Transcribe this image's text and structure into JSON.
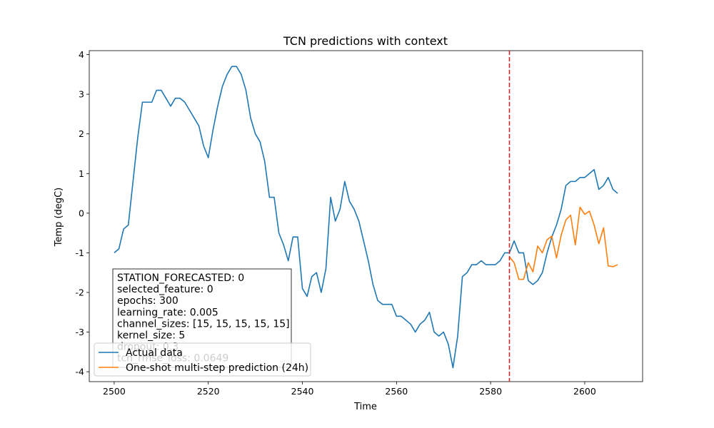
{
  "chart_data": {
    "type": "line",
    "title": "TCN predictions with context",
    "xlabel": "Time",
    "ylabel": "Temp (degC)",
    "xlim": [
      2494.7,
      2612.3
    ],
    "ylim": [
      -4.25,
      4.1
    ],
    "xticks": [
      2500,
      2520,
      2540,
      2560,
      2580,
      2600
    ],
    "yticks": [
      -4,
      -3,
      -2,
      -1,
      0,
      1,
      2,
      3,
      4
    ],
    "grid": false,
    "legend_position": "lower-left",
    "forecast_start_line": {
      "x": 2584,
      "color": "#d62728",
      "style": "dashed"
    },
    "series": [
      {
        "name": "Actual data",
        "color": "#1f77b4",
        "x_start": 2500,
        "values": [
          -1.0,
          -0.9,
          -0.4,
          -0.3,
          0.8,
          1.9,
          2.8,
          2.8,
          2.8,
          3.1,
          3.1,
          2.9,
          2.7,
          2.9,
          2.9,
          2.8,
          2.6,
          2.4,
          2.2,
          1.7,
          1.4,
          2.1,
          2.7,
          3.2,
          3.5,
          3.7,
          3.7,
          3.5,
          3.1,
          2.4,
          2.0,
          1.8,
          1.3,
          0.4,
          0.4,
          -0.5,
          -0.8,
          -1.2,
          -0.6,
          -0.6,
          -1.9,
          -2.1,
          -1.6,
          -1.5,
          -2.0,
          -1.4,
          0.4,
          -0.2,
          0.1,
          0.8,
          0.3,
          0.1,
          -0.2,
          -0.7,
          -1.2,
          -1.8,
          -2.2,
          -2.3,
          -2.3,
          -2.3,
          -2.6,
          -2.6,
          -2.7,
          -2.8,
          -3.0,
          -2.8,
          -2.7,
          -2.5,
          -3.0,
          -3.1,
          -3.0,
          -3.3,
          -3.9,
          -3.1,
          -1.6,
          -1.5,
          -1.3,
          -1.3,
          -1.2,
          -1.3,
          -1.3,
          -1.3,
          -1.2,
          -1.0,
          -1.0,
          -0.7,
          -1.0,
          -1.0,
          -1.7,
          -1.8,
          -1.7,
          -1.5,
          -1.0,
          -0.6,
          -0.3,
          0.1,
          0.7,
          0.8,
          0.8,
          0.9,
          0.9,
          1.0,
          1.1,
          0.6,
          0.7,
          0.9,
          0.6,
          0.5
        ]
      },
      {
        "name": "One-shot multi-step prediction (24h)",
        "color": "#ff7f0e",
        "x_start": 2584,
        "values": [
          -1.1,
          -1.25,
          -1.67,
          -1.67,
          -1.25,
          -1.48,
          -0.83,
          -1.0,
          -0.67,
          -0.58,
          -1.13,
          -0.55,
          -0.17,
          -0.05,
          -0.8,
          0.15,
          -0.03,
          0.05,
          -0.3,
          -0.77,
          -0.37,
          -1.33,
          -1.35,
          -1.3
        ]
      }
    ]
  },
  "info_box": {
    "lines": [
      "STATION_FORECASTED: 0",
      "selected_feature: 0",
      "epochs: 300",
      "learning_rate: 0.005",
      "channel_sizes: [15, 15, 15, 15, 15]",
      "kernel_size: 5",
      "dropout: 0.3",
      "tcn_rmse_loss: 0.0649"
    ]
  },
  "legend": {
    "entries": [
      {
        "label": "Actual data",
        "color": "#1f77b4"
      },
      {
        "label": "One-shot multi-step prediction (24h)",
        "color": "#ff7f0e"
      }
    ]
  }
}
